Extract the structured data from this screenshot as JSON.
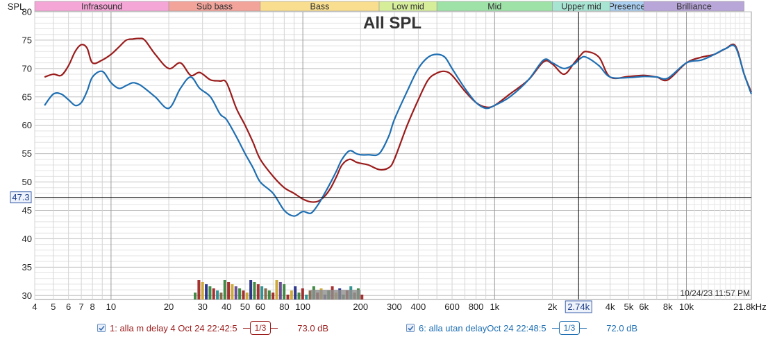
{
  "chart_data": {
    "type": "line",
    "title": "All SPL",
    "ylabel": "SPL",
    "xlabel": "",
    "x_scale": "log",
    "xlim": [
      4,
      21800
    ],
    "ylim": [
      29.3,
      80
    ],
    "y_ticks": [
      30,
      35,
      40,
      45,
      50,
      55,
      60,
      65,
      70,
      75,
      80
    ],
    "y_tick_labels": [
      "30",
      "35",
      "40",
      "45",
      "50",
      "55",
      "60",
      "65",
      "70",
      "75",
      "80"
    ],
    "x_ticks": [
      4,
      5,
      6,
      7,
      8,
      10,
      20,
      30,
      40,
      50,
      60,
      80,
      100,
      200,
      300,
      400,
      600,
      800,
      1000,
      2000,
      4000,
      5000,
      6000,
      8000,
      10000,
      21800
    ],
    "x_tick_labels": [
      "4",
      "5",
      "6",
      "7",
      "8",
      "10",
      "20",
      "30",
      "40",
      "50",
      "60",
      "80",
      "100",
      "200",
      "300",
      "400",
      "600",
      "800",
      "1k",
      "2k",
      "4k",
      "5k",
      "6k",
      "8k",
      "10k",
      "21.8kHz"
    ],
    "grid": true,
    "cursor": {
      "x": 2740,
      "y": 47.3,
      "x_label": "2.74k",
      "y_label": "47.3"
    },
    "timestamp": "10/24/23 11:57 PM",
    "bands": [
      {
        "name": "Infrasound",
        "from": 4,
        "to": 20,
        "color": "#f4a6d7"
      },
      {
        "name": "Sub bass",
        "from": 20,
        "to": 60,
        "color": "#f2a49b"
      },
      {
        "name": "Bass",
        "from": 60,
        "to": 250,
        "color": "#f8de8e"
      },
      {
        "name": "Low mid",
        "from": 250,
        "to": 500,
        "color": "#d6ee9a"
      },
      {
        "name": "Mid",
        "from": 500,
        "to": 2000,
        "color": "#9fe2a8"
      },
      {
        "name": "Upper mid",
        "from": 2000,
        "to": 4000,
        "color": "#a8e4d2"
      },
      {
        "name": "Presence",
        "from": 4000,
        "to": 6000,
        "color": "#a9cdee"
      },
      {
        "name": "Brilliance",
        "from": 6000,
        "to": 20000,
        "color": "#b8a6d9"
      }
    ],
    "series": [
      {
        "name": "1: alla m delay 4 Oct 24 22:42:5",
        "color": "#9b1c1c",
        "smoothing": "1/3",
        "level": "73.0 dB",
        "x": [
          4.5,
          5,
          5.5,
          6,
          6.5,
          7,
          7.5,
          8,
          9,
          10,
          11,
          12,
          13,
          14,
          15,
          17,
          20,
          23,
          26,
          29,
          33,
          37,
          40,
          45,
          50,
          55,
          60,
          70,
          80,
          90,
          100,
          110,
          120,
          130,
          140,
          150,
          160,
          175,
          190,
          200,
          220,
          250,
          280,
          300,
          350,
          400,
          450,
          500,
          550,
          600,
          700,
          800,
          900,
          1000,
          1200,
          1500,
          1800,
          2000,
          2300,
          2600,
          2800,
          3000,
          3500,
          4000,
          5000,
          6000,
          7000,
          8000,
          10000,
          12000,
          14000,
          16000,
          18000,
          20000,
          21800
        ],
        "y": [
          68.5,
          69,
          68.8,
          70.5,
          73,
          74.2,
          73.6,
          71,
          71.5,
          72.5,
          73.8,
          75,
          75.2,
          75.3,
          75,
          72.5,
          70,
          71,
          68.8,
          69.3,
          68,
          67.8,
          67.5,
          63,
          60,
          57,
          54,
          51,
          49,
          48,
          47,
          46.5,
          46.6,
          47.5,
          49,
          51,
          53,
          54,
          53.5,
          53.3,
          53,
          52.2,
          52.5,
          54,
          60,
          64.5,
          68,
          69.2,
          69.5,
          68.8,
          66,
          64,
          63.2,
          63.5,
          65.5,
          68,
          71.2,
          70.8,
          69,
          71,
          72.3,
          73,
          72,
          68.5,
          68.6,
          68.8,
          68.5,
          68,
          71,
          72,
          72.5,
          73.5,
          74,
          69,
          65.8
        ]
      },
      {
        "name": "6: alla utan delayOct 24 22:48:5",
        "color": "#1f6fb2",
        "smoothing": "1/3",
        "level": "72.0 dB",
        "x": [
          4.5,
          5,
          5.5,
          6,
          6.5,
          7,
          7.5,
          8,
          9,
          10,
          11,
          12,
          13,
          14,
          15,
          17,
          20,
          23,
          26,
          29,
          33,
          37,
          40,
          45,
          50,
          55,
          60,
          70,
          80,
          90,
          100,
          110,
          120,
          130,
          140,
          150,
          160,
          175,
          190,
          200,
          220,
          250,
          280,
          300,
          350,
          400,
          450,
          500,
          550,
          600,
          700,
          800,
          900,
          1000,
          1200,
          1500,
          1800,
          2000,
          2300,
          2600,
          2800,
          3000,
          3500,
          4000,
          5000,
          6000,
          7000,
          8000,
          10000,
          12000,
          14000,
          16000,
          18000,
          20000,
          21800
        ],
        "y": [
          63.5,
          65.5,
          65.5,
          64.5,
          63.5,
          64,
          66,
          68.5,
          69.5,
          67.5,
          66.5,
          67,
          67.5,
          67.2,
          66.5,
          65,
          63,
          66.5,
          68.5,
          66.5,
          65,
          62,
          61,
          58,
          55,
          52.5,
          50,
          48,
          45,
          44,
          44.8,
          44.5,
          46,
          48,
          50,
          52,
          54,
          55.5,
          55,
          54.8,
          54.8,
          55,
          58,
          61,
          66,
          70,
          72,
          72.5,
          72,
          70,
          66.5,
          64,
          63,
          63.5,
          65,
          68,
          71.5,
          71,
          70,
          70.8,
          71.8,
          72,
          70.5,
          68.5,
          68.4,
          68.6,
          68.5,
          68.3,
          71,
          71.5,
          72.5,
          73.5,
          73.8,
          69,
          65.5
        ]
      }
    ]
  }
}
